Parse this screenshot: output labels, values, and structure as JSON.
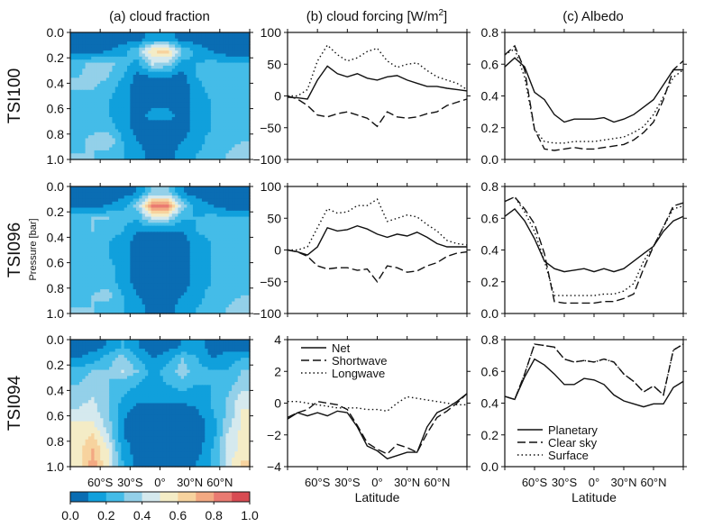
{
  "columns": {
    "a": {
      "title": "(a) cloud fraction"
    },
    "b": {
      "title": "(b) cloud forcing [W/m",
      "title_sup": "2",
      "title_end": "]"
    },
    "c": {
      "title": "(c) Albedo"
    }
  },
  "row_labels": [
    "TSI100",
    "TSI096",
    "TSI094"
  ],
  "pressure_label": "Pressure [bar]",
  "latitude_label": "Latitude",
  "lat_tick_labels": [
    "60°S",
    "30°S",
    "0°",
    "30°N",
    "60°N"
  ],
  "lat_tick_values": [
    -60,
    -30,
    0,
    30,
    60
  ],
  "pressure_ticks": [
    "0.0",
    "0.2",
    "0.4",
    "0.6",
    "0.8",
    "1.0"
  ],
  "colorbar": {
    "labels": [
      "0.0",
      "0.2",
      "0.4",
      "0.6",
      "0.8",
      "1.0"
    ],
    "levels": [
      0,
      0.1,
      0.2,
      0.3,
      0.4,
      0.5,
      0.6,
      0.7,
      0.8,
      0.9,
      1.0
    ],
    "colors": [
      "#0a6db3",
      "#10a0dc",
      "#44bce8",
      "#93d0e9",
      "#d5e9ee",
      "#f4ecc6",
      "#f7d39e",
      "#f3a982",
      "#ea7a71",
      "#d84b52"
    ]
  },
  "legends": {
    "forcing": [
      "Net",
      "Shortwave",
      "Longwave"
    ],
    "albedo": [
      "Planetary",
      "Clear sky",
      "Surface"
    ]
  },
  "chart_data": [
    {
      "type": "heatmap",
      "column": "a",
      "row": "TSI100",
      "xlim": [
        -90,
        90
      ],
      "ylim": [
        1,
        0
      ],
      "z": [
        [
          0.05,
          0.05,
          0.05,
          0.05,
          0.05,
          0.15,
          0.15,
          0.05,
          0.05,
          0.05,
          0.05,
          0.05
        ],
        [
          0.05,
          0.05,
          0.1,
          0.15,
          0.3,
          0.6,
          0.65,
          0.3,
          0.15,
          0.1,
          0.05,
          0.05
        ],
        [
          0.25,
          0.35,
          0.35,
          0.25,
          0.15,
          0.4,
          0.35,
          0.15,
          0.2,
          0.25,
          0.2,
          0.2
        ],
        [
          0.3,
          0.35,
          0.3,
          0.2,
          0.05,
          0.1,
          0.1,
          0.05,
          0.2,
          0.3,
          0.25,
          0.25
        ],
        [
          0.3,
          0.3,
          0.25,
          0.15,
          0.05,
          0.05,
          0.05,
          0.05,
          0.15,
          0.25,
          0.25,
          0.25
        ],
        [
          0.2,
          0.25,
          0.2,
          0.15,
          0.05,
          0.05,
          0.05,
          0.05,
          0.15,
          0.2,
          0.2,
          0.2
        ],
        [
          0.2,
          0.2,
          0.2,
          0.15,
          0.05,
          0.15,
          0.15,
          0.05,
          0.15,
          0.2,
          0.2,
          0.2
        ],
        [
          0.2,
          0.25,
          0.25,
          0.15,
          0.05,
          0.05,
          0.05,
          0.05,
          0.15,
          0.2,
          0.2,
          0.2
        ],
        [
          0.25,
          0.35,
          0.4,
          0.2,
          0.1,
          0.05,
          0.05,
          0.1,
          0.15,
          0.25,
          0.25,
          0.3
        ],
        [
          0.3,
          0.3,
          0.25,
          0.2,
          0.15,
          0.05,
          0.05,
          0.15,
          0.2,
          0.25,
          0.3,
          0.35
        ]
      ]
    },
    {
      "type": "heatmap",
      "column": "a",
      "row": "TSI096",
      "xlim": [
        -90,
        90
      ],
      "ylim": [
        1,
        0
      ],
      "z": [
        [
          0.05,
          0.05,
          0.05,
          0.05,
          0.1,
          0.3,
          0.3,
          0.1,
          0.05,
          0.05,
          0.05,
          0.05
        ],
        [
          0.05,
          0.05,
          0.1,
          0.15,
          0.35,
          0.85,
          0.85,
          0.35,
          0.15,
          0.1,
          0.05,
          0.05
        ],
        [
          0.25,
          0.3,
          0.3,
          0.25,
          0.2,
          0.45,
          0.4,
          0.2,
          0.2,
          0.25,
          0.2,
          0.2
        ],
        [
          0.3,
          0.3,
          0.25,
          0.2,
          0.1,
          0.1,
          0.1,
          0.1,
          0.2,
          0.25,
          0.25,
          0.25
        ],
        [
          0.25,
          0.25,
          0.2,
          0.15,
          0.05,
          0.05,
          0.05,
          0.05,
          0.15,
          0.2,
          0.25,
          0.25
        ],
        [
          0.2,
          0.2,
          0.2,
          0.15,
          0.05,
          0.05,
          0.05,
          0.05,
          0.15,
          0.2,
          0.2,
          0.2
        ],
        [
          0.2,
          0.2,
          0.25,
          0.15,
          0.05,
          0.1,
          0.1,
          0.05,
          0.15,
          0.2,
          0.2,
          0.2
        ],
        [
          0.2,
          0.25,
          0.25,
          0.15,
          0.05,
          0.05,
          0.05,
          0.05,
          0.15,
          0.2,
          0.2,
          0.25
        ],
        [
          0.25,
          0.3,
          0.35,
          0.2,
          0.1,
          0.05,
          0.05,
          0.1,
          0.15,
          0.25,
          0.25,
          0.3
        ],
        [
          0.3,
          0.3,
          0.25,
          0.2,
          0.15,
          0.05,
          0.05,
          0.15,
          0.2,
          0.25,
          0.3,
          0.35
        ]
      ]
    },
    {
      "type": "heatmap",
      "column": "a",
      "row": "TSI094",
      "xlim": [
        -90,
        90
      ],
      "ylim": [
        1,
        0
      ],
      "z": [
        [
          0.05,
          0.05,
          0.1,
          0.2,
          0.1,
          0.05,
          0.05,
          0.1,
          0.15,
          0.05,
          0.05,
          0.05
        ],
        [
          0.1,
          0.15,
          0.25,
          0.35,
          0.2,
          0.1,
          0.15,
          0.3,
          0.2,
          0.1,
          0.15,
          0.2
        ],
        [
          0.25,
          0.3,
          0.3,
          0.4,
          0.3,
          0.15,
          0.25,
          0.35,
          0.25,
          0.2,
          0.2,
          0.3
        ],
        [
          0.3,
          0.35,
          0.3,
          0.25,
          0.2,
          0.15,
          0.2,
          0.25,
          0.2,
          0.2,
          0.25,
          0.35
        ],
        [
          0.35,
          0.4,
          0.3,
          0.2,
          0.15,
          0.15,
          0.15,
          0.15,
          0.15,
          0.2,
          0.3,
          0.45
        ],
        [
          0.4,
          0.45,
          0.3,
          0.15,
          0.05,
          0.05,
          0.05,
          0.05,
          0.1,
          0.2,
          0.3,
          0.5
        ],
        [
          0.5,
          0.5,
          0.35,
          0.1,
          0.05,
          0.05,
          0.05,
          0.05,
          0.05,
          0.15,
          0.35,
          0.5
        ],
        [
          0.55,
          0.6,
          0.4,
          0.1,
          0.05,
          0.05,
          0.05,
          0.05,
          0.05,
          0.15,
          0.4,
          0.55
        ],
        [
          0.55,
          0.7,
          0.5,
          0.15,
          0.05,
          0.05,
          0.05,
          0.05,
          0.05,
          0.2,
          0.4,
          0.55
        ],
        [
          0.5,
          0.75,
          0.5,
          0.2,
          0.05,
          0.05,
          0.05,
          0.05,
          0.1,
          0.2,
          0.45,
          0.6
        ]
      ]
    },
    {
      "type": "line",
      "column": "b",
      "row": "TSI100",
      "ylim": [
        -100,
        100
      ],
      "yticks": [
        "100",
        "50",
        "0",
        "−50",
        "−100"
      ],
      "x": [
        -90,
        -80,
        -70,
        -60,
        -50,
        -40,
        -30,
        -20,
        -10,
        0,
        10,
        20,
        30,
        40,
        50,
        60,
        70,
        80,
        90
      ],
      "series": [
        {
          "name": "Net",
          "values": [
            -2,
            -3,
            -5,
            25,
            47,
            35,
            30,
            35,
            28,
            25,
            30,
            32,
            25,
            20,
            15,
            15,
            12,
            10,
            8
          ]
        },
        {
          "name": "Shortwave",
          "values": [
            0,
            -5,
            -15,
            -30,
            -33,
            -28,
            -25,
            -30,
            -35,
            -48,
            -25,
            -33,
            -35,
            -33,
            -28,
            -25,
            -15,
            -10,
            -5
          ]
        },
        {
          "name": "Longwave",
          "values": [
            0,
            0,
            10,
            55,
            80,
            65,
            55,
            60,
            70,
            75,
            55,
            45,
            50,
            52,
            40,
            30,
            25,
            20,
            10
          ]
        }
      ]
    },
    {
      "type": "line",
      "column": "b",
      "row": "TSI096",
      "ylim": [
        -100,
        100
      ],
      "yticks": [
        "100",
        "50",
        "0",
        "−50",
        "−100"
      ],
      "x": [
        -90,
        -80,
        -70,
        -60,
        -50,
        -40,
        -30,
        -20,
        -10,
        0,
        10,
        20,
        30,
        40,
        50,
        60,
        70,
        80,
        90
      ],
      "series": [
        {
          "name": "Net",
          "values": [
            0,
            -3,
            -8,
            5,
            35,
            30,
            32,
            38,
            33,
            25,
            20,
            25,
            22,
            28,
            20,
            10,
            5,
            5,
            5
          ]
        },
        {
          "name": "Shortwave",
          "values": [
            0,
            -3,
            -10,
            -25,
            -30,
            -28,
            -28,
            -32,
            -30,
            -50,
            -25,
            -28,
            -35,
            -33,
            -25,
            -20,
            -10,
            -5,
            -3
          ]
        },
        {
          "name": "Longwave",
          "values": [
            0,
            0,
            5,
            35,
            65,
            58,
            60,
            70,
            70,
            80,
            45,
            50,
            55,
            52,
            40,
            30,
            15,
            10,
            8
          ]
        }
      ]
    },
    {
      "type": "line",
      "column": "b",
      "row": "TSI094",
      "ylim": [
        -4,
        4
      ],
      "yticks": [
        "4",
        "2",
        "0",
        "−2",
        "−4"
      ],
      "x": [
        -90,
        -80,
        -70,
        -60,
        -50,
        -40,
        -30,
        -20,
        -10,
        0,
        10,
        20,
        30,
        40,
        50,
        60,
        70,
        80,
        90
      ],
      "series": [
        {
          "name": "Net",
          "values": [
            -1,
            -0.6,
            -0.8,
            -0.6,
            -0.8,
            -0.5,
            -0.6,
            -1.5,
            -2.7,
            -3.0,
            -3.5,
            -3.3,
            -3.1,
            -3.1,
            -1.5,
            -0.6,
            -0.3,
            0.1,
            0.6
          ]
        },
        {
          "name": "Shortwave",
          "values": [
            -0.9,
            -0.6,
            -0.4,
            0.1,
            0.0,
            -0.1,
            -0.4,
            -1.4,
            -2.5,
            -2.9,
            -3.2,
            -2.6,
            -2.8,
            -3.1,
            -1.9,
            -0.9,
            -0.5,
            0.0,
            0.6
          ]
        },
        {
          "name": "Longwave",
          "values": [
            0.1,
            0.1,
            0.0,
            -0.1,
            -0.2,
            -0.3,
            -0.3,
            -0.3,
            -0.4,
            -0.4,
            -0.5,
            0.0,
            0.4,
            0.3,
            0.2,
            0.1,
            0.0,
            -0.1,
            -0.1
          ]
        }
      ]
    },
    {
      "type": "line",
      "column": "c",
      "row": "TSI100",
      "ylim": [
        0,
        0.85
      ],
      "yticks": [
        "0.8",
        "0.6",
        "0.4",
        "0.2",
        "0.0"
      ],
      "x": [
        -90,
        -80,
        -70,
        -60,
        -50,
        -40,
        -30,
        -20,
        -10,
        0,
        10,
        20,
        30,
        40,
        50,
        60,
        70,
        80,
        90
      ],
      "series": [
        {
          "name": "Planetary",
          "values": [
            0.62,
            0.68,
            0.62,
            0.45,
            0.4,
            0.3,
            0.25,
            0.27,
            0.27,
            0.27,
            0.28,
            0.25,
            0.27,
            0.3,
            0.35,
            0.4,
            0.5,
            0.6,
            0.6
          ]
        },
        {
          "name": "Clear sky",
          "values": [
            0.7,
            0.76,
            0.6,
            0.2,
            0.07,
            0.06,
            0.07,
            0.08,
            0.07,
            0.07,
            0.08,
            0.09,
            0.1,
            0.13,
            0.18,
            0.25,
            0.4,
            0.6,
            0.66
          ]
        },
        {
          "name": "Surface",
          "values": [
            0.7,
            0.74,
            0.55,
            0.2,
            0.12,
            0.11,
            0.11,
            0.12,
            0.12,
            0.12,
            0.13,
            0.14,
            0.15,
            0.18,
            0.22,
            0.3,
            0.42,
            0.55,
            0.6
          ]
        }
      ]
    },
    {
      "type": "line",
      "column": "c",
      "row": "TSI096",
      "ylim": [
        0,
        0.85
      ],
      "yticks": [
        "0.8",
        "0.6",
        "0.4",
        "0.2",
        "0.0"
      ],
      "x": [
        -90,
        -80,
        -70,
        -60,
        -50,
        -40,
        -30,
        -20,
        -10,
        0,
        10,
        20,
        30,
        40,
        50,
        60,
        70,
        80,
        90
      ],
      "series": [
        {
          "name": "Planetary",
          "values": [
            0.65,
            0.7,
            0.62,
            0.5,
            0.35,
            0.3,
            0.28,
            0.29,
            0.3,
            0.28,
            0.3,
            0.28,
            0.3,
            0.35,
            0.4,
            0.45,
            0.55,
            0.62,
            0.65
          ]
        },
        {
          "name": "Clear sky",
          "values": [
            0.75,
            0.78,
            0.7,
            0.6,
            0.4,
            0.08,
            0.07,
            0.07,
            0.07,
            0.07,
            0.08,
            0.08,
            0.1,
            0.13,
            0.3,
            0.45,
            0.58,
            0.72,
            0.74
          ]
        },
        {
          "name": "Surface",
          "values": [
            0.75,
            0.78,
            0.68,
            0.55,
            0.35,
            0.12,
            0.12,
            0.12,
            0.12,
            0.12,
            0.13,
            0.13,
            0.15,
            0.2,
            0.35,
            0.45,
            0.58,
            0.7,
            0.72
          ]
        }
      ]
    },
    {
      "type": "line",
      "column": "c",
      "row": "TSI094",
      "ylim": [
        0,
        0.85
      ],
      "yticks": [
        "0.8",
        "0.6",
        "0.4",
        "0.2",
        "0.0"
      ],
      "x": [
        -90,
        -80,
        -70,
        -60,
        -50,
        -40,
        -30,
        -20,
        -10,
        0,
        10,
        20,
        30,
        40,
        50,
        60,
        70,
        80,
        90
      ],
      "series": [
        {
          "name": "Planetary",
          "values": [
            0.47,
            0.45,
            0.6,
            0.72,
            0.68,
            0.62,
            0.55,
            0.55,
            0.59,
            0.58,
            0.55,
            0.48,
            0.44,
            0.42,
            0.4,
            0.42,
            0.42,
            0.53,
            0.57
          ]
        },
        {
          "name": "Clear sky",
          "values": [
            0.47,
            0.45,
            0.62,
            0.82,
            0.81,
            0.8,
            0.72,
            0.7,
            0.71,
            0.7,
            0.72,
            0.7,
            0.62,
            0.57,
            0.5,
            0.54,
            0.48,
            0.78,
            0.82
          ]
        },
        {
          "name": "Surface",
          "values": [
            0.47,
            0.45,
            0.62,
            0.82,
            0.81,
            0.8,
            0.72,
            0.7,
            0.71,
            0.7,
            0.72,
            0.7,
            0.62,
            0.57,
            0.5,
            0.54,
            0.48,
            0.78,
            0.82
          ]
        }
      ]
    }
  ]
}
